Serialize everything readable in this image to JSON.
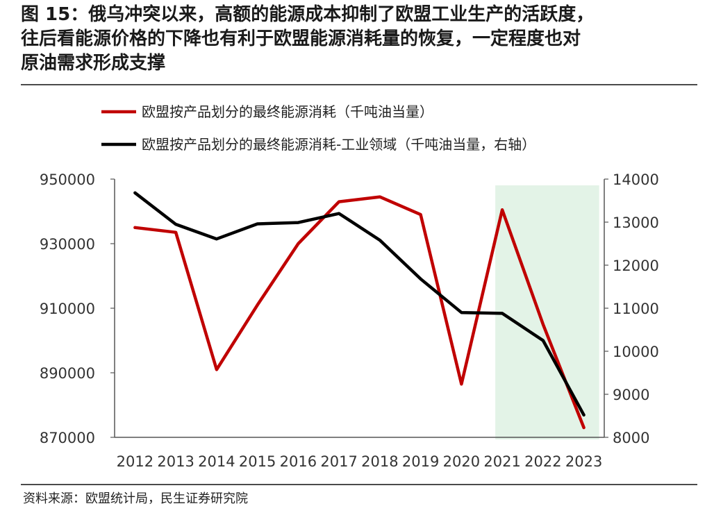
{
  "header": {
    "title_lines": [
      "图 15：俄乌冲突以来，高额的能源成本抑制了欧盟工业生产的活跃度，",
      "往后看能源价格的下降也有利于欧盟能源消耗量的恢复，一定程度也对",
      "原油需求形成支撑"
    ]
  },
  "footer": {
    "source": "资料来源：欧盟统计局，民生证券研究院"
  },
  "chart_data": {
    "type": "line",
    "x": [
      "2012",
      "2013",
      "2014",
      "2015",
      "2016",
      "2017",
      "2018",
      "2019",
      "2020",
      "2021",
      "2022",
      "2023"
    ],
    "series": [
      {
        "name": "欧盟按产品划分的最终能源消耗（千吨油当量）",
        "axis": "left",
        "color": "#c00000",
        "values": [
          935000,
          933500,
          891000,
          911000,
          930000,
          943000,
          944500,
          939000,
          886500,
          940500,
          905000,
          873000
        ]
      },
      {
        "name": "欧盟按产品划分的最终能源消耗-工业领域（千吨油当量，右轴）",
        "axis": "right",
        "color": "#000000",
        "values": [
          13680,
          12950,
          12610,
          12960,
          12990,
          13200,
          12580,
          11680,
          10900,
          10880,
          10250,
          8520
        ]
      }
    ],
    "y_left": {
      "min": 870000,
      "max": 950000,
      "ticks": [
        870000,
        890000,
        910000,
        930000,
        950000
      ]
    },
    "y_right": {
      "min": 8000,
      "max": 14000,
      "ticks": [
        8000,
        9000,
        10000,
        11000,
        12000,
        13000,
        14000
      ]
    },
    "highlight": {
      "from": "2021",
      "to": "2023",
      "color": "#e3f3e7"
    },
    "grid": false,
    "legend_position": "top-left"
  }
}
